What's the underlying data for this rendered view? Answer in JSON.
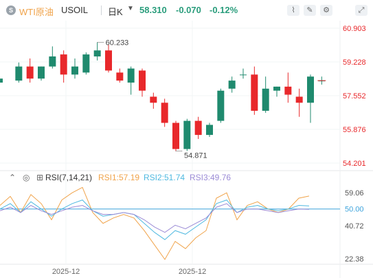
{
  "header": {
    "logo_glyph": "S",
    "name": "WTI原油",
    "code": "USOIL",
    "timeframe": "日K",
    "caret": "▼",
    "price": "58.310",
    "change": "-0.070",
    "change_pct": "-0.12%",
    "tools": [
      {
        "name": "indicator-icon",
        "glyph": "⌇"
      },
      {
        "name": "draw-icon",
        "glyph": "✎"
      },
      {
        "name": "settings-icon",
        "glyph": "⚙"
      },
      {
        "name": "fullscreen-icon",
        "glyph": "⤢"
      }
    ]
  },
  "rsi_legend": {
    "collapse_glyph": "⌃",
    "eye_glyph": "◎",
    "box_glyph": "⊞",
    "label": "RSI(7,14,21)",
    "rsi1": "RSI1:57.19",
    "rsi2": "RSI2:51.74",
    "rsi3": "RSI3:49.76"
  },
  "colors": {
    "up": "#1f8a6e",
    "down": "#e8282b",
    "rsi1": "#f0a34a",
    "rsi2": "#4fb9e0",
    "rsi3": "#9b8bd6",
    "rsi_ref": "#3ca3dc",
    "price_axis": "#e8282b",
    "rsi_axis": "#555555"
  },
  "chart_data": [
    {
      "type": "candlestick",
      "ylim": [
        54.201,
        60.903
      ],
      "y_ticks": [
        "60.903",
        "59.228",
        "57.552",
        "55.876",
        "54.201"
      ],
      "high_label": "60.233",
      "low_label": "54.871",
      "candles": [
        {
          "o": 58.2,
          "h": 58.9,
          "l": 57.8,
          "c": 58.4
        },
        {
          "o": 58.3,
          "h": 59.2,
          "l": 58.2,
          "c": 59.0
        },
        {
          "o": 59.0,
          "h": 59.4,
          "l": 58.2,
          "c": 58.4
        },
        {
          "o": 58.4,
          "h": 59.0,
          "l": 58.3,
          "c": 59.0
        },
        {
          "o": 59.0,
          "h": 60.0,
          "l": 58.9,
          "c": 59.5
        },
        {
          "o": 59.6,
          "h": 59.8,
          "l": 58.2,
          "c": 58.6
        },
        {
          "o": 58.6,
          "h": 59.4,
          "l": 58.4,
          "c": 59.0
        },
        {
          "o": 58.7,
          "h": 59.7,
          "l": 58.6,
          "c": 59.6
        },
        {
          "o": 59.5,
          "h": 60.2,
          "l": 59.3,
          "c": 59.8
        },
        {
          "o": 59.8,
          "h": 60.1,
          "l": 58.7,
          "c": 58.8
        },
        {
          "o": 58.7,
          "h": 58.9,
          "l": 58.2,
          "c": 58.3
        },
        {
          "o": 58.2,
          "h": 59.0,
          "l": 57.6,
          "c": 58.9
        },
        {
          "o": 58.8,
          "h": 58.9,
          "l": 57.5,
          "c": 57.8
        },
        {
          "o": 57.5,
          "h": 57.7,
          "l": 56.9,
          "c": 57.2
        },
        {
          "o": 57.2,
          "h": 57.4,
          "l": 56.0,
          "c": 56.2
        },
        {
          "o": 56.2,
          "h": 56.3,
          "l": 54.8,
          "c": 54.9
        },
        {
          "o": 54.9,
          "h": 56.4,
          "l": 54.8,
          "c": 56.3
        },
        {
          "o": 56.3,
          "h": 56.5,
          "l": 55.4,
          "c": 55.6
        },
        {
          "o": 55.6,
          "h": 56.2,
          "l": 55.5,
          "c": 56.1
        },
        {
          "o": 56.3,
          "h": 57.9,
          "l": 56.2,
          "c": 57.8
        },
        {
          "o": 57.9,
          "h": 58.5,
          "l": 57.7,
          "c": 58.3
        },
        {
          "o": 58.6,
          "h": 58.9,
          "l": 58.4,
          "c": 58.6
        },
        {
          "o": 58.6,
          "h": 59.0,
          "l": 56.6,
          "c": 56.8
        },
        {
          "o": 56.8,
          "h": 58.5,
          "l": 56.7,
          "c": 57.9
        },
        {
          "o": 57.8,
          "h": 58.0,
          "l": 57.5,
          "c": 58.0
        },
        {
          "o": 58.0,
          "h": 58.7,
          "l": 57.2,
          "c": 57.6
        },
        {
          "o": 57.5,
          "h": 57.9,
          "l": 56.5,
          "c": 57.2
        },
        {
          "o": 57.2,
          "h": 58.6,
          "l": 56.2,
          "c": 58.5
        },
        {
          "o": 58.3,
          "h": 58.5,
          "l": 58.1,
          "c": 58.3
        }
      ]
    },
    {
      "type": "line",
      "ylim": [
        22.38,
        59.06
      ],
      "y_ticks": [
        "59.06",
        "50.00",
        "40.72",
        "22.38"
      ],
      "reference_line": 50,
      "x_tick_labels": [
        "2025-12",
        "2025-12"
      ],
      "series": [
        {
          "name": "RSI1",
          "values": [
            52,
            57,
            48,
            58,
            53,
            44,
            55,
            59,
            62,
            48,
            42,
            45,
            47,
            45,
            38,
            30,
            22,
            32,
            28,
            34,
            38,
            56,
            59,
            44,
            52,
            54,
            50,
            48,
            50,
            56,
            57.2
          ]
        },
        {
          "name": "RSI2",
          "values": [
            50,
            53,
            48,
            54,
            50,
            46,
            50,
            53,
            55,
            49,
            46,
            47,
            48,
            47,
            42,
            37,
            33,
            38,
            36,
            40,
            44,
            53,
            55,
            48,
            51,
            52,
            50,
            49,
            50,
            52,
            51.7
          ]
        },
        {
          "name": "RSI3",
          "values": [
            49,
            51,
            48,
            52,
            49,
            47,
            49,
            51,
            52,
            49,
            47,
            47,
            48,
            47,
            44,
            40,
            37,
            41,
            39,
            42,
            45,
            51,
            53,
            48,
            50,
            50,
            49,
            48,
            49,
            50,
            49.8
          ]
        }
      ]
    }
  ]
}
